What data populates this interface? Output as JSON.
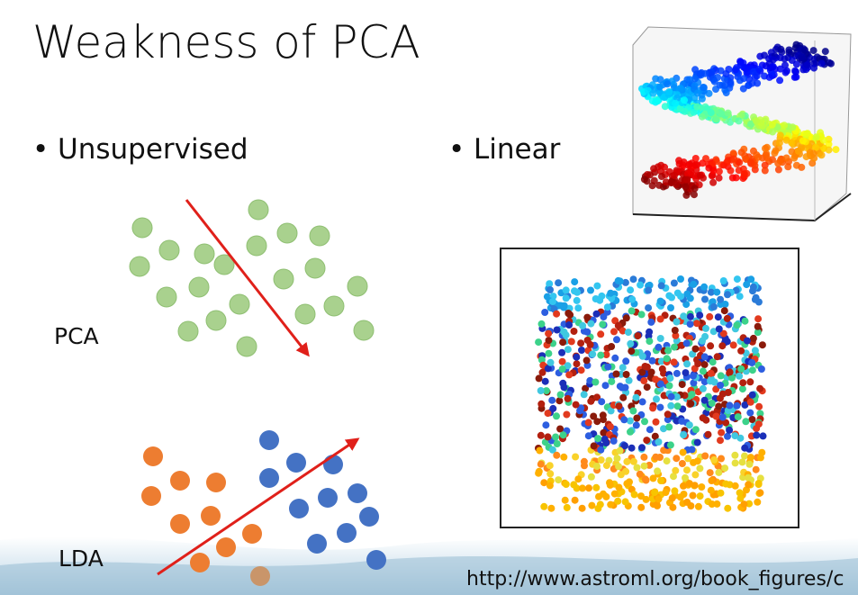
{
  "title": "Weakness of PCA",
  "bullets": [
    "Unsupervised",
    "Linear"
  ],
  "diagram_labels": {
    "pca": "PCA",
    "lda": "LDA"
  },
  "footer": {
    "url": "http://www.astroml.org/book_figures/c"
  }
}
